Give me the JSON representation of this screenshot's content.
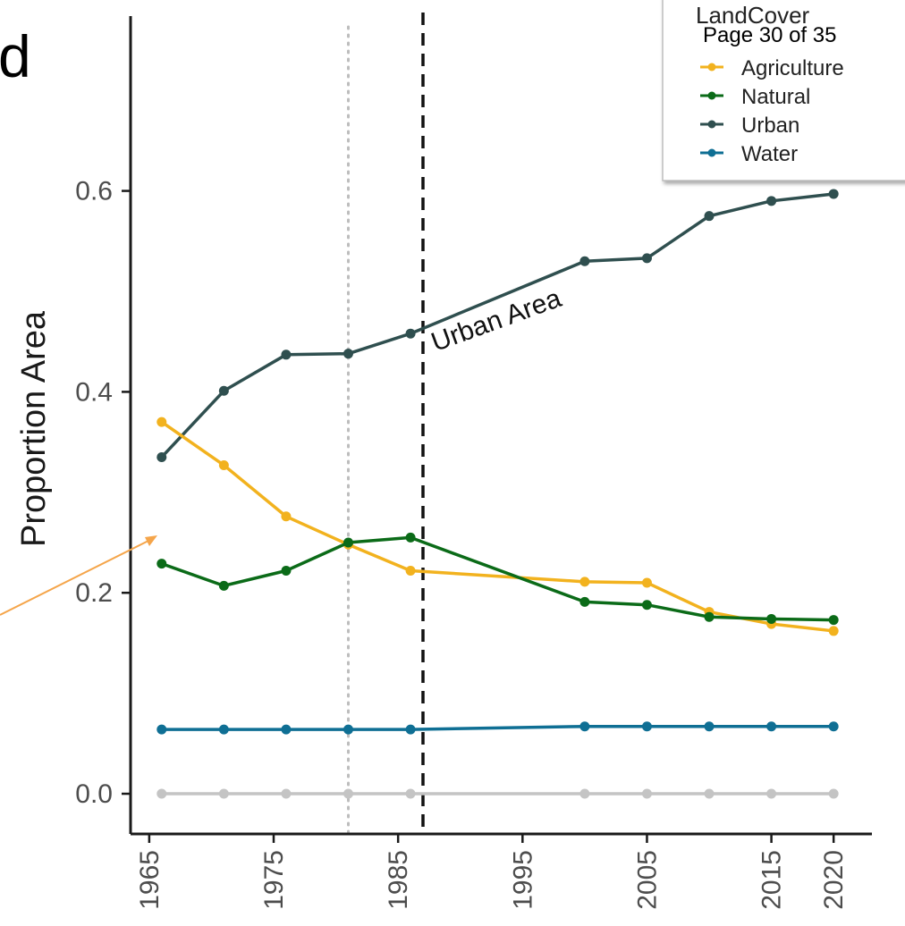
{
  "page_label": "Page 30 of 35",
  "partial_heading_char": "d",
  "colors": {
    "agriculture": "#f2b21e",
    "natural": "#0b6b18",
    "urban": "#2f4f4f",
    "water": "#0f6f94",
    "baseline": "#c4c4c4",
    "arrow": "#f5a54a",
    "axis": "#1a1a1a",
    "vline_dashed": "#111111",
    "vline_dotted": "#bdbdbd"
  },
  "chart_data": {
    "type": "line",
    "ylabel": "Proportion Area",
    "xlabel": "",
    "xlim": [
      1963.5,
      2022
    ],
    "ylim": [
      -0.04,
      0.79
    ],
    "x_ticks": [
      1965,
      1975,
      1985,
      1995,
      2005,
      2015,
      2020
    ],
    "y_ticks": [
      0.0,
      0.2,
      0.4,
      0.6
    ],
    "y_tick_labels": [
      "0.0",
      "0.2",
      "0.4",
      "0.6"
    ],
    "grid": false,
    "legend": {
      "title": "LandCover",
      "position": "top-right",
      "entries": [
        "Agriculture",
        "Natural",
        "Urban",
        "Water"
      ]
    },
    "vertical_lines": [
      {
        "x": 1981,
        "style": "dotted"
      },
      {
        "x": 1987,
        "style": "dashed"
      }
    ],
    "annotations": [
      {
        "text": "Urban Area",
        "x": 1988,
        "y": 0.44,
        "angle": -20
      }
    ],
    "series": [
      {
        "name": "Urban",
        "color_key": "urban",
        "x": [
          1966,
          1971,
          1976,
          1981,
          1986,
          2000,
          2005,
          2010,
          2015,
          2020
        ],
        "y": [
          0.335,
          0.401,
          0.437,
          0.438,
          0.458,
          0.53,
          0.533,
          0.575,
          0.59,
          0.597
        ]
      },
      {
        "name": "Agriculture",
        "color_key": "agriculture",
        "x": [
          1966,
          1971,
          1976,
          1981,
          1986,
          2000,
          2005,
          2010,
          2015,
          2020
        ],
        "y": [
          0.37,
          0.327,
          0.276,
          0.248,
          0.222,
          0.211,
          0.21,
          0.181,
          0.169,
          0.162
        ]
      },
      {
        "name": "Natural",
        "color_key": "natural",
        "x": [
          1966,
          1971,
          1976,
          1981,
          1986,
          2000,
          2005,
          2010,
          2015,
          2020
        ],
        "y": [
          0.229,
          0.207,
          0.222,
          0.25,
          0.255,
          0.191,
          0.188,
          0.176,
          0.174,
          0.173
        ]
      },
      {
        "name": "Water",
        "color_key": "water",
        "x": [
          1966,
          1971,
          1976,
          1981,
          1986,
          2000,
          2005,
          2010,
          2015,
          2020
        ],
        "y": [
          0.064,
          0.064,
          0.064,
          0.064,
          0.064,
          0.067,
          0.067,
          0.067,
          0.067,
          0.067
        ]
      },
      {
        "color_key": "baseline",
        "x": [
          1966,
          1971,
          1976,
          1981,
          1986,
          2000,
          2005,
          2010,
          2015,
          2020
        ],
        "y": [
          0,
          0,
          0,
          0,
          0,
          0,
          0,
          0,
          0,
          0
        ]
      }
    ]
  }
}
